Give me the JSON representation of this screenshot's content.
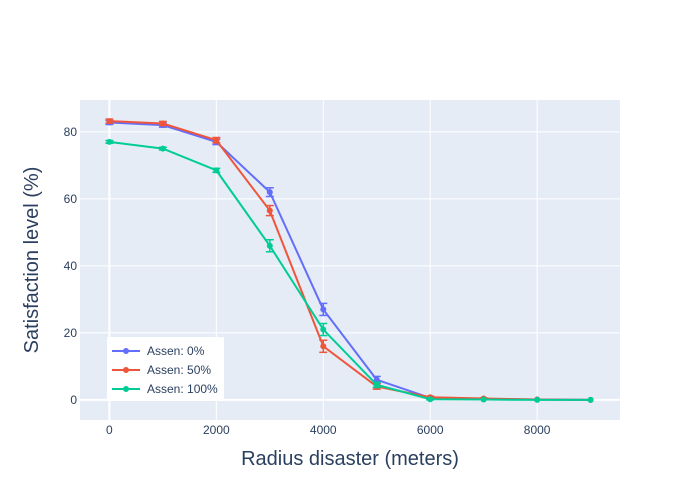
{
  "chart_data": {
    "type": "line",
    "xlabel": "Radius disaster (meters)",
    "ylabel": "Satisfaction level (%)",
    "xlim": [
      -550,
      9550
    ],
    "ylim": [
      -6,
      89.5
    ],
    "x_ticks": [
      0,
      2000,
      4000,
      6000,
      8000
    ],
    "y_ticks": [
      0,
      20,
      40,
      60,
      80
    ],
    "grid": true,
    "legend_position": "bottom-left",
    "x": [
      0,
      1000,
      2000,
      3000,
      4000,
      5000,
      6000,
      7000,
      8000,
      9000
    ],
    "series": [
      {
        "name": "Assen: 0%",
        "color": "#636efa",
        "values": [
          82.8,
          82.0,
          77.0,
          62.0,
          27.0,
          6.0,
          0.6,
          0.3,
          0.1,
          0.0
        ],
        "error": [
          0.6,
          0.6,
          0.8,
          1.3,
          1.8,
          1.0,
          0.3,
          0.2,
          0.1,
          0.0
        ]
      },
      {
        "name": "Assen: 50%",
        "color": "#ef553b",
        "values": [
          83.2,
          82.5,
          77.5,
          56.5,
          16.0,
          4.0,
          0.8,
          0.4,
          0.1,
          0.0
        ],
        "error": [
          0.6,
          0.6,
          0.8,
          1.5,
          1.8,
          0.8,
          0.3,
          0.2,
          0.1,
          0.0
        ]
      },
      {
        "name": "Assen: 100%",
        "color": "#00cc96",
        "values": [
          77.0,
          75.0,
          68.5,
          46.0,
          21.0,
          4.5,
          0.2,
          0.1,
          0.0,
          0.0
        ],
        "error": [
          0.4,
          0.4,
          0.6,
          1.8,
          1.8,
          0.8,
          0.2,
          0.1,
          0.0,
          0.0
        ]
      }
    ]
  }
}
